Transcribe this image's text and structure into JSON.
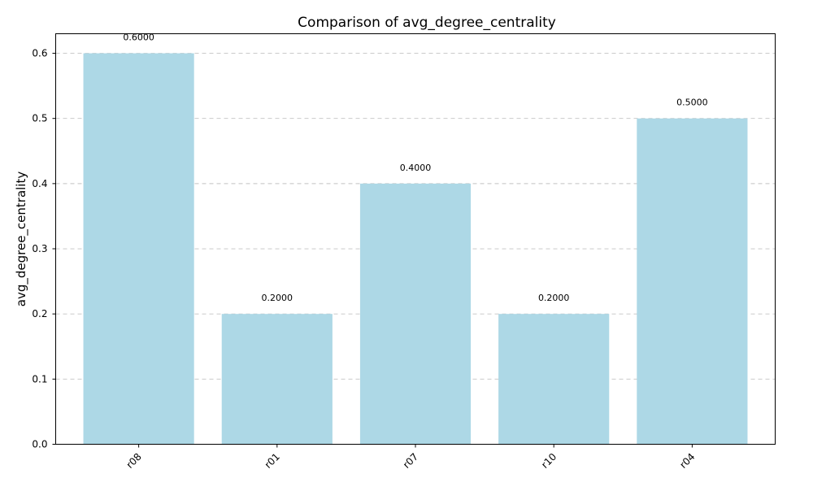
{
  "chart_data": {
    "type": "bar",
    "title": "Comparison of avg_degree_centrality",
    "xlabel": "",
    "ylabel": "avg_degree_centrality",
    "categories": [
      "r08",
      "r01",
      "r07",
      "r10",
      "r04"
    ],
    "values": [
      0.6,
      0.2,
      0.4,
      0.2,
      0.5
    ],
    "data_labels": [
      "0.6000",
      "0.2000",
      "0.4000",
      "0.2000",
      "0.5000"
    ],
    "ylim": [
      0,
      0.63
    ],
    "yticks": [
      0.0,
      0.1,
      0.2,
      0.3,
      0.4,
      0.5,
      0.6
    ],
    "ytick_labels": [
      "0.0",
      "0.1",
      "0.2",
      "0.3",
      "0.4",
      "0.5",
      "0.6"
    ],
    "xtick_rotation": 45,
    "grid": "y-axis dashed",
    "legend": "none",
    "bar_color": "#add8e6",
    "grid_color": "#c2c2c2"
  }
}
